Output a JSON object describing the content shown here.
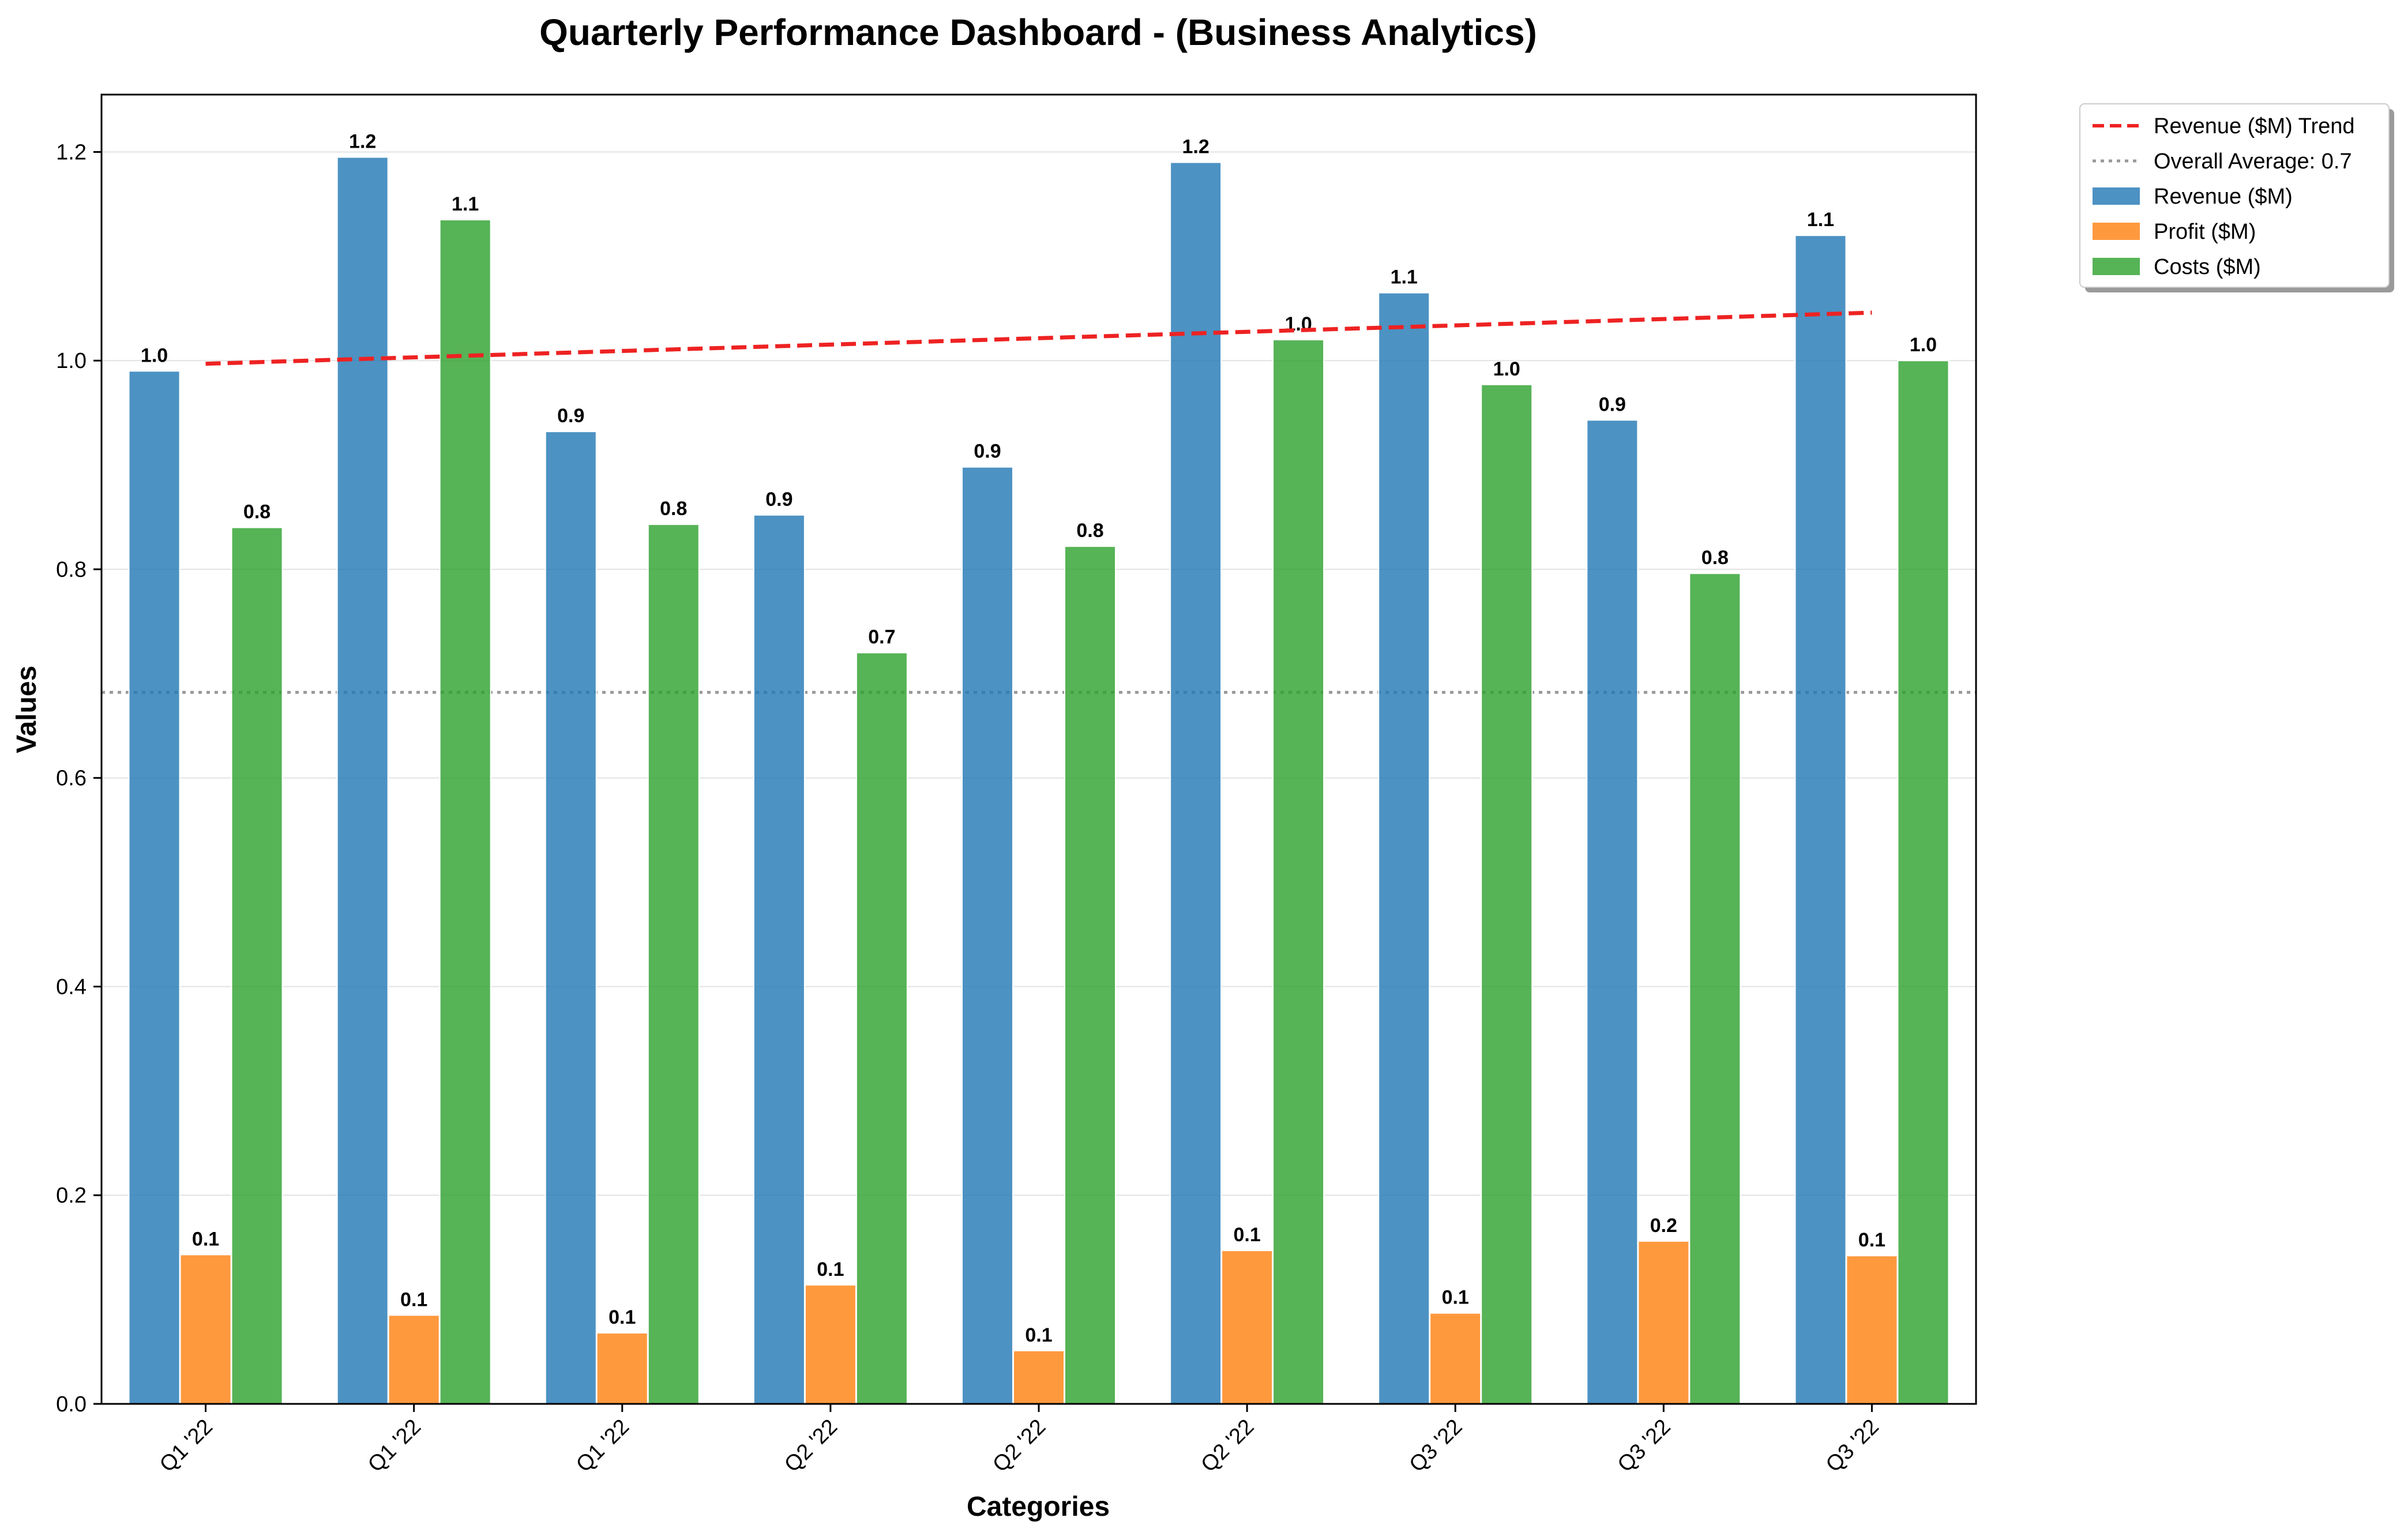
{
  "chart_data": {
    "type": "bar",
    "title": "Quarterly Performance Dashboard - (Business Analytics)",
    "xlabel": "Categories",
    "ylabel": "Values",
    "ylim": [
      0,
      1.255
    ],
    "yticks": [
      0.0,
      0.2,
      0.4,
      0.6,
      0.8,
      1.0,
      1.2
    ],
    "grid": "horizontal",
    "legend_position": "top-right",
    "categories": [
      "Q1 '22",
      "Q1 '22",
      "Q1 '22",
      "Q2 '22",
      "Q2 '22",
      "Q2 '22",
      "Q3 '22",
      "Q3 '22",
      "Q3 '22"
    ],
    "series": [
      {
        "name": "Revenue ($M)",
        "color": "#1f77b4",
        "values": [
          0.99,
          1.195,
          0.932,
          0.852,
          0.898,
          1.19,
          1.065,
          0.943,
          1.12
        ],
        "labels": [
          "1.0",
          "1.2",
          "0.9",
          "0.9",
          "0.9",
          "1.2",
          "1.1",
          "0.9",
          "1.1"
        ]
      },
      {
        "name": "Profit ($M)",
        "color": "#ff7f0e",
        "values": [
          0.143,
          0.085,
          0.068,
          0.114,
          0.051,
          0.147,
          0.087,
          0.156,
          0.142
        ],
        "labels": [
          "0.1",
          "0.1",
          "0.1",
          "0.1",
          "0.1",
          "0.1",
          "0.1",
          "0.2",
          "0.1"
        ]
      },
      {
        "name": "Costs ($M)",
        "color": "#2ca02c",
        "values": [
          0.84,
          1.135,
          0.843,
          0.72,
          0.822,
          1.02,
          0.977,
          0.796,
          1.0
        ],
        "labels": [
          "0.8",
          "1.1",
          "0.8",
          "0.7",
          "0.8",
          "1.0",
          "1.0",
          "0.8",
          "1.0"
        ]
      }
    ],
    "trend": {
      "name": "Revenue ($M) Trend",
      "color": "#ee2222",
      "start": 0.997,
      "end": 1.046
    },
    "average": {
      "label": "Overall Average: 0.7",
      "value": 0.682,
      "color": "#999999"
    }
  }
}
